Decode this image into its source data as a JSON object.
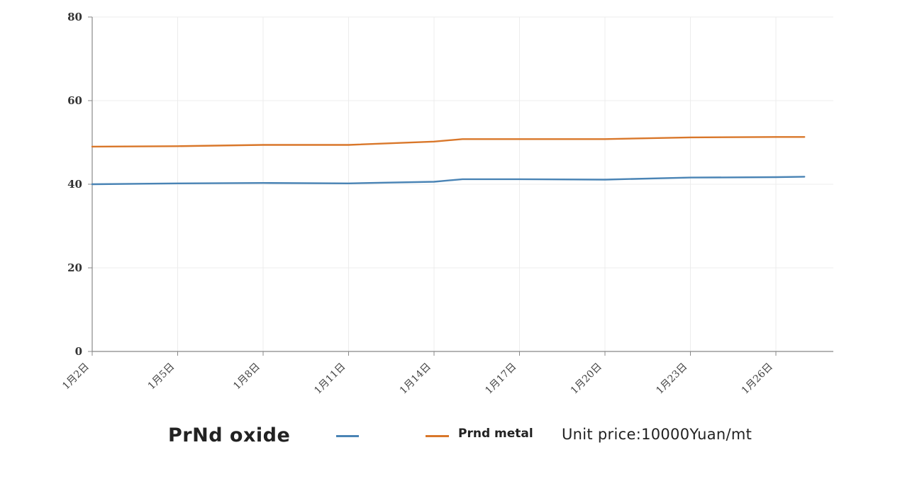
{
  "chart_data": {
    "type": "line",
    "title": "",
    "xlabel": "",
    "ylabel": "",
    "ylim": [
      0,
      80
    ],
    "yticks": [
      0,
      20,
      40,
      60,
      80
    ],
    "x_tick_labels": [
      "1月2日",
      "1月5日",
      "1月8日",
      "1月11日",
      "1月14日",
      "1月17日",
      "1月20日",
      "1月23日",
      "1月26日"
    ],
    "grid": true,
    "legend_position": "bottom",
    "series": [
      {
        "name": "PrNd oxide",
        "color": "#4a84b5",
        "x": [
          "1月2日",
          "1月5日",
          "1月8日",
          "1月11日",
          "1月14日",
          "1月15日",
          "1月17日",
          "1月20日",
          "1月23日",
          "1月26日",
          "1月27日"
        ],
        "values": [
          40.0,
          40.2,
          40.3,
          40.2,
          40.6,
          41.2,
          41.2,
          41.1,
          41.6,
          41.7,
          41.8
        ]
      },
      {
        "name": "Prnd metal",
        "color": "#d9772a",
        "x": [
          "1月2日",
          "1月5日",
          "1月8日",
          "1月11日",
          "1月14日",
          "1月15日",
          "1月17日",
          "1月20日",
          "1月23日",
          "1月26日",
          "1月27日"
        ],
        "values": [
          49.0,
          49.1,
          49.4,
          49.4,
          50.2,
          50.8,
          50.8,
          50.8,
          51.2,
          51.3,
          51.3
        ]
      }
    ]
  },
  "legend": {
    "oxide_label": "PrNd oxide",
    "metal_label": "Prnd metal",
    "unit_label": "Unit price:10000Yuan/mt"
  }
}
